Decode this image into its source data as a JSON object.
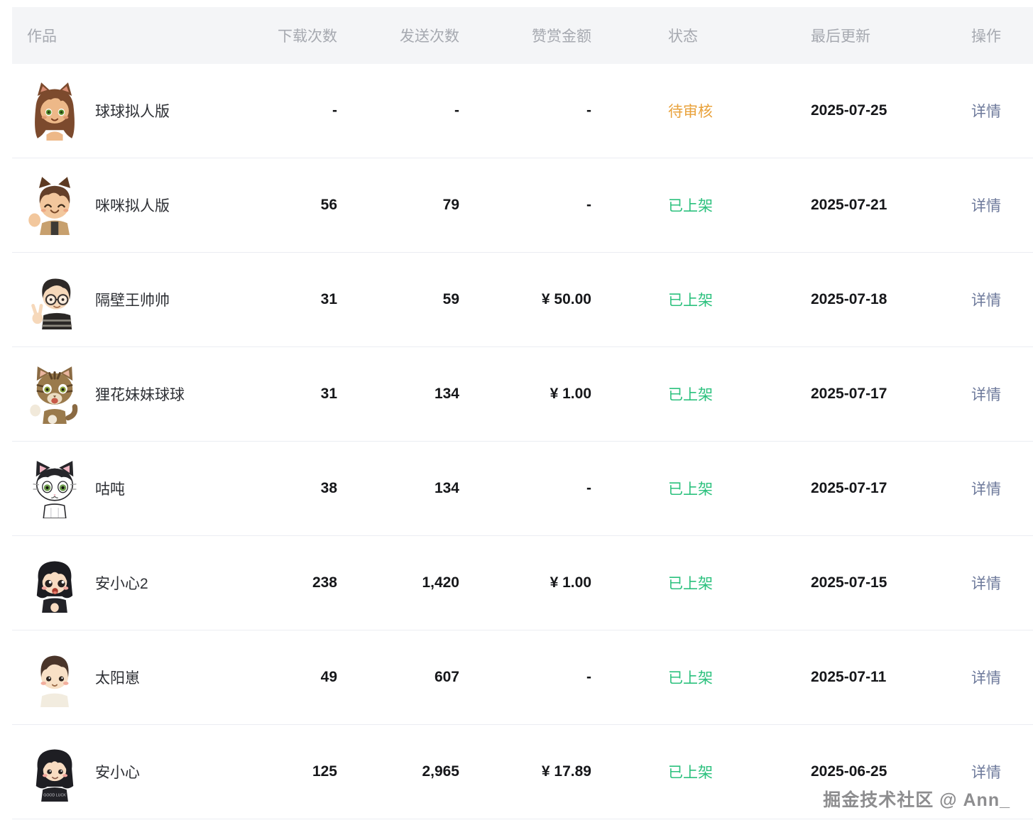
{
  "table": {
    "columns": [
      {
        "key": "work",
        "label": "作品"
      },
      {
        "key": "downloads",
        "label": "下载次数"
      },
      {
        "key": "sends",
        "label": "发送次数"
      },
      {
        "key": "reward",
        "label": "赞赏金额"
      },
      {
        "key": "status",
        "label": "状态"
      },
      {
        "key": "updated",
        "label": "最后更新"
      },
      {
        "key": "action",
        "label": "操作"
      }
    ],
    "rows": [
      {
        "name": "球球拟人版",
        "avatar": "cat-girl-avatar",
        "downloads": "-",
        "sends": "-",
        "reward": "-",
        "status": "待审核",
        "status_type": "pending",
        "updated": "2025-07-25",
        "action": "详情"
      },
      {
        "name": "咪咪拟人版",
        "avatar": "cat-boy-avatar",
        "downloads": "56",
        "sends": "79",
        "reward": "-",
        "status": "已上架",
        "status_type": "live",
        "updated": "2025-07-21",
        "action": "详情"
      },
      {
        "name": "隔壁王帅帅",
        "avatar": "boy-glasses-avatar",
        "downloads": "31",
        "sends": "59",
        "reward": "¥ 50.00",
        "status": "已上架",
        "status_type": "live",
        "updated": "2025-07-18",
        "action": "详情"
      },
      {
        "name": "狸花妹妹球球",
        "avatar": "tabby-cat-avatar",
        "downloads": "31",
        "sends": "134",
        "reward": "¥ 1.00",
        "status": "已上架",
        "status_type": "live",
        "updated": "2025-07-17",
        "action": "详情"
      },
      {
        "name": "咕吨",
        "avatar": "tuxedo-cat-avatar",
        "downloads": "38",
        "sends": "134",
        "reward": "-",
        "status": "已上架",
        "status_type": "live",
        "updated": "2025-07-17",
        "action": "详情"
      },
      {
        "name": "安小心2",
        "avatar": "girl-excited-avatar",
        "downloads": "238",
        "sends": "1,420",
        "reward": "¥ 1.00",
        "status": "已上架",
        "status_type": "live",
        "updated": "2025-07-15",
        "action": "详情"
      },
      {
        "name": "太阳崽",
        "avatar": "boy-sun-avatar",
        "downloads": "49",
        "sends": "607",
        "reward": "-",
        "status": "已上架",
        "status_type": "live",
        "updated": "2025-07-11",
        "action": "详情"
      },
      {
        "name": "安小心",
        "avatar": "girl-goodluck-avatar",
        "downloads": "125",
        "sends": "2,965",
        "reward": "¥ 17.89",
        "status": "已上架",
        "status_type": "live",
        "updated": "2025-06-25",
        "action": "详情"
      }
    ]
  },
  "colors": {
    "status_pending": "#e9a23b",
    "status_live": "#2cc17e",
    "action_link": "#6e7a9b"
  },
  "watermark": "掘金技术社区 @ Ann_"
}
